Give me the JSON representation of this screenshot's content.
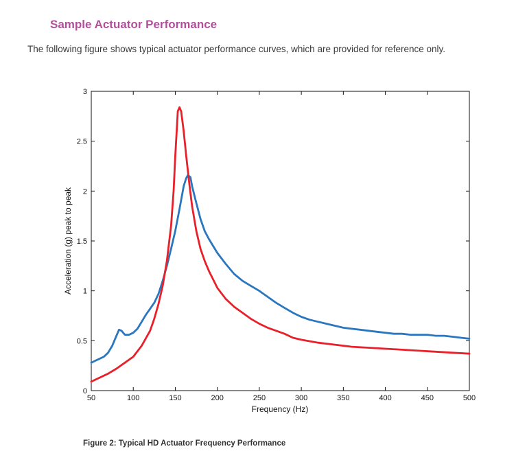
{
  "page": {
    "heading": "Sample Actuator Performance",
    "intro": "The following figure shows typical actuator performance curves, which are provided for reference only.",
    "caption": "Figure 2: Typical HD Actuator Frequency Performance"
  },
  "colors": {
    "heading": "#b0509a",
    "series_blue": "#2a77bf",
    "series_red": "#e8202a",
    "axis": "#111111"
  },
  "chart_data": {
    "type": "line",
    "title": "",
    "xlabel": "Frequency (Hz)",
    "ylabel": "Acceleration (g) peak to peak",
    "xlim": [
      50,
      500
    ],
    "ylim": [
      0,
      3
    ],
    "xticks": [
      50,
      100,
      150,
      200,
      250,
      300,
      350,
      400,
      450,
      500
    ],
    "yticks": [
      0,
      0.5,
      1,
      1.5,
      2,
      2.5,
      3
    ],
    "xtick_labels": [
      "50",
      "100",
      "150",
      "200",
      "250",
      "300",
      "350",
      "400",
      "450",
      "500"
    ],
    "ytick_labels": [
      "0",
      "0.5",
      "1",
      "1.5",
      "2",
      "2.5",
      "3"
    ],
    "grid": false,
    "legend": "none",
    "series": [
      {
        "name": "blue",
        "color": "#2a77bf",
        "x": [
          50,
          55,
          60,
          65,
          70,
          75,
          80,
          83,
          86,
          90,
          95,
          100,
          105,
          110,
          115,
          120,
          125,
          130,
          135,
          140,
          145,
          150,
          155,
          160,
          163,
          165,
          168,
          170,
          175,
          180,
          185,
          190,
          200,
          210,
          220,
          230,
          240,
          250,
          260,
          270,
          280,
          290,
          300,
          310,
          320,
          330,
          340,
          350,
          360,
          370,
          380,
          390,
          400,
          410,
          420,
          430,
          440,
          450,
          460,
          470,
          480,
          490,
          500
        ],
        "y": [
          0.28,
          0.3,
          0.32,
          0.34,
          0.38,
          0.45,
          0.55,
          0.61,
          0.6,
          0.56,
          0.56,
          0.58,
          0.62,
          0.69,
          0.76,
          0.82,
          0.88,
          0.97,
          1.1,
          1.25,
          1.42,
          1.6,
          1.82,
          2.05,
          2.13,
          2.16,
          2.14,
          2.05,
          1.88,
          1.72,
          1.6,
          1.52,
          1.38,
          1.27,
          1.17,
          1.1,
          1.05,
          1.0,
          0.94,
          0.88,
          0.83,
          0.78,
          0.74,
          0.71,
          0.69,
          0.67,
          0.65,
          0.63,
          0.62,
          0.61,
          0.6,
          0.59,
          0.58,
          0.57,
          0.57,
          0.56,
          0.56,
          0.56,
          0.55,
          0.55,
          0.54,
          0.53,
          0.52
        ]
      },
      {
        "name": "red",
        "color": "#e8202a",
        "x": [
          50,
          55,
          60,
          70,
          80,
          90,
          100,
          110,
          120,
          125,
          130,
          135,
          140,
          145,
          148,
          150,
          152,
          153,
          155,
          157,
          160,
          163,
          167,
          170,
          175,
          180,
          185,
          190,
          200,
          210,
          220,
          230,
          240,
          250,
          260,
          270,
          280,
          290,
          300,
          320,
          340,
          360,
          380,
          400,
          420,
          440,
          460,
          480,
          500
        ],
        "y": [
          0.09,
          0.11,
          0.13,
          0.17,
          0.22,
          0.28,
          0.34,
          0.45,
          0.6,
          0.72,
          0.87,
          1.05,
          1.3,
          1.65,
          2.0,
          2.35,
          2.65,
          2.8,
          2.84,
          2.8,
          2.6,
          2.35,
          2.05,
          1.85,
          1.6,
          1.42,
          1.3,
          1.2,
          1.03,
          0.92,
          0.84,
          0.78,
          0.72,
          0.67,
          0.63,
          0.6,
          0.57,
          0.53,
          0.51,
          0.48,
          0.46,
          0.44,
          0.43,
          0.42,
          0.41,
          0.4,
          0.39,
          0.38,
          0.37
        ]
      }
    ]
  }
}
